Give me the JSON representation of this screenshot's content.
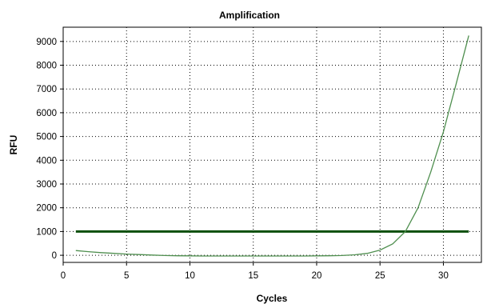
{
  "chart_data": {
    "type": "line",
    "title": "Amplification",
    "xlabel": "Cycles",
    "ylabel": "RFU",
    "xlim": [
      0,
      33
    ],
    "ylim": [
      -300,
      9600
    ],
    "x_ticks": [
      0,
      5,
      10,
      15,
      20,
      25,
      30
    ],
    "y_ticks": [
      0,
      1000,
      2000,
      3000,
      4000,
      5000,
      6000,
      7000,
      8000,
      9000
    ],
    "grid": true,
    "series": [
      {
        "color": "#4f8f4f",
        "x": [
          1,
          2,
          3,
          4,
          5,
          6,
          7,
          8,
          9,
          10,
          11,
          12,
          13,
          14,
          15,
          16,
          17,
          18,
          19,
          20,
          21,
          22,
          23,
          24,
          25,
          26,
          27,
          28,
          29,
          30,
          31,
          32
        ],
        "y": [
          200,
          150,
          110,
          80,
          50,
          30,
          10,
          -10,
          -20,
          -25,
          -30,
          -30,
          -30,
          -30,
          -30,
          -30,
          -30,
          -30,
          -30,
          -25,
          -20,
          -10,
          20,
          80,
          220,
          480,
          1000,
          2000,
          3500,
          5200,
          7200,
          9250
        ]
      }
    ],
    "threshold": {
      "y": 1000,
      "x_start": 1,
      "x_end": 32,
      "color": "#0b4f0b"
    }
  }
}
